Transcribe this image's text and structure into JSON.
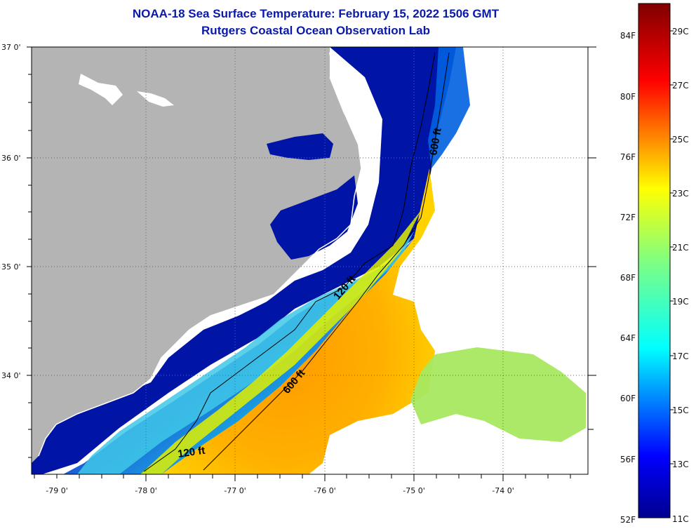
{
  "title": {
    "line1": "NOAA-18 Sea Surface Temperature:  February 15, 2022 1506 GMT",
    "line2": "Rutgers Coastal Ocean Observation Lab"
  },
  "lat_labels": [
    "37 0'",
    "36 0'",
    "35 0'",
    "34 0'"
  ],
  "lon_labels": [
    "-79 0'",
    "-78 0'",
    "-77 0'",
    "-76 0'",
    "-75 0'",
    "-74 0'"
  ],
  "contours": {
    "shallow": "120 ft",
    "deep": "600 ft"
  },
  "colorbar": {
    "fahrenheit": [
      "84F",
      "80F",
      "76F",
      "72F",
      "68F",
      "64F",
      "60F",
      "56F",
      "52F"
    ],
    "celsius": [
      "29C",
      "27C",
      "25C",
      "23C",
      "21C",
      "19C",
      "17C",
      "15C",
      "13C",
      "11C"
    ]
  },
  "colors": {
    "title": "#0a1aa8",
    "land": "#b4b4b4",
    "cold": "#00008f",
    "warm": "#800000"
  }
}
